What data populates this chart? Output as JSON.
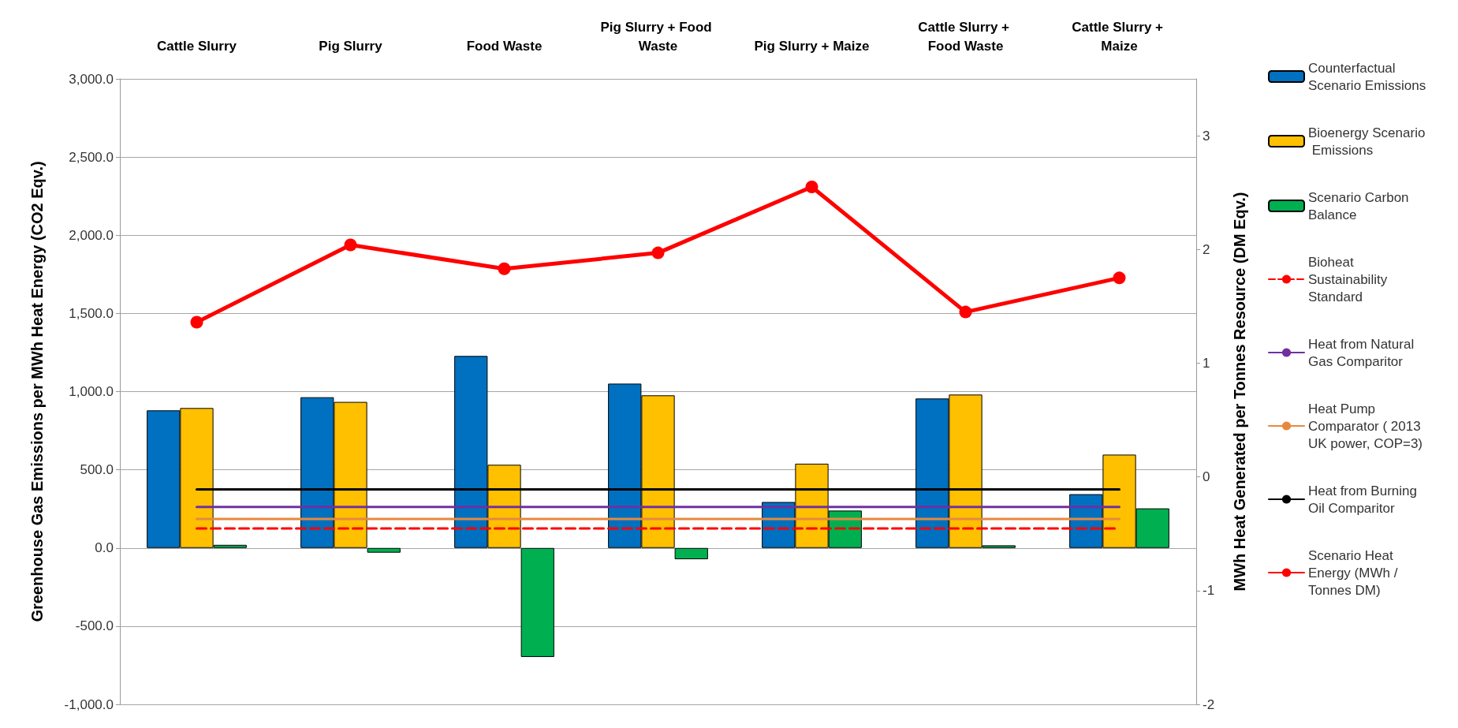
{
  "chart_data": {
    "type": "bar",
    "ylabel": "Greenhouse Gas Emissions per MWh Heat Energy (CO2 Eqv.)",
    "y2label": "MWh Heat Generated per Tonnes Resource (DM Eqv.)",
    "categories": [
      "Cattle Slurry",
      "Pig Slurry",
      "Food Waste",
      "Pig Slurry + Food Waste",
      "Pig Slurry + Maize",
      "Cattle Slurry + Food Waste",
      "Cattle Slurry + Maize"
    ],
    "series": [
      {
        "name": "Counterfactual Scenario Emissions",
        "color": "#0070c0",
        "values": [
          880,
          964,
          1228,
          1051,
          294,
          956,
          344
        ]
      },
      {
        "name": "Bioenergy Scenario Emissions",
        "color": "#ffc000",
        "values": [
          895,
          934,
          532,
          976,
          539,
          981,
          597
        ]
      },
      {
        "name": "Scenario Carbon Balance",
        "color": "#00b050",
        "values": [
          20,
          -30,
          -697,
          -72,
          239,
          17,
          253
        ]
      },
      {
        "name": "Bioheat Sustainability Standard",
        "type": "line",
        "color": "#ff0000",
        "line_style": "dashed",
        "marker": "none",
        "values": [
          125,
          125,
          125,
          125,
          125,
          125,
          125
        ]
      },
      {
        "name": "Heat from Natural Gas Comparitor",
        "type": "line",
        "color": "#7030a0",
        "line_style": "solid",
        "marker": "none",
        "values": [
          262,
          262,
          262,
          262,
          262,
          262,
          262
        ]
      },
      {
        "name": "Heat Pump Comparator ( 2013 UK power, COP=3)",
        "type": "line",
        "color": "#e6893f",
        "line_style": "solid",
        "marker": "none",
        "values": [
          185,
          185,
          185,
          185,
          185,
          185,
          185
        ]
      },
      {
        "name": "Heat from Burning Oil Comparitor",
        "type": "line",
        "color": "#000000",
        "line_style": "solid",
        "marker": "none",
        "values": [
          375,
          375,
          375,
          375,
          375,
          375,
          375
        ]
      },
      {
        "name": "Scenario Heat Energy (MWh / Tonnes DM)",
        "type": "line",
        "axis": "y2",
        "color": "#ff0000",
        "line_style": "solid",
        "marker": "circle",
        "values": [
          1.36,
          2.04,
          1.83,
          1.97,
          2.55,
          1.45,
          1.75
        ]
      }
    ],
    "ylim": [
      -1000,
      3000
    ],
    "yticks": [
      {
        "value": -1000,
        "label": "-1,000.0"
      },
      {
        "value": -500,
        "label": "-500.0"
      },
      {
        "value": 0,
        "label": "0.0"
      },
      {
        "value": 500,
        "label": "500.0"
      },
      {
        "value": 1000,
        "label": "1,000.0"
      },
      {
        "value": 1500,
        "label": "1,500.0"
      },
      {
        "value": 2000,
        "label": "2,000.0"
      },
      {
        "value": 2500,
        "label": "2,500.0"
      },
      {
        "value": 3000,
        "label": "3,000.0"
      }
    ],
    "y2lim": [
      -2,
      3.5
    ],
    "y2ticks": [
      -2,
      -1,
      0,
      1,
      2,
      3
    ],
    "grid": "y",
    "legend": "right"
  }
}
